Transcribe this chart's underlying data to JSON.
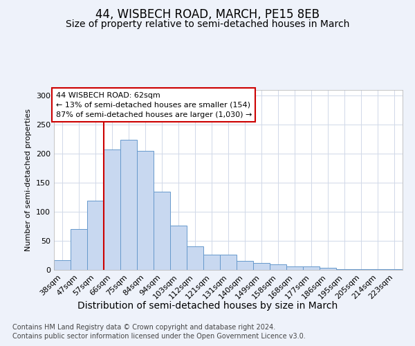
{
  "title": "44, WISBECH ROAD, MARCH, PE15 8EB",
  "subtitle": "Size of property relative to semi-detached houses in March",
  "xlabel": "Distribution of semi-detached houses by size in March",
  "ylabel": "Number of semi-detached properties",
  "footer_line1": "Contains HM Land Registry data © Crown copyright and database right 2024.",
  "footer_line2": "Contains public sector information licensed under the Open Government Licence v3.0.",
  "annotation_title": "44 WISBECH ROAD: 62sqm",
  "annotation_line2": "← 13% of semi-detached houses are smaller (154)",
  "annotation_line3": "87% of semi-detached houses are larger (1,030) →",
  "bar_color": "#c8d8f0",
  "bar_edge_color": "#6699cc",
  "red_line_color": "#cc0000",
  "categories": [
    "38sqm",
    "47sqm",
    "57sqm",
    "66sqm",
    "75sqm",
    "84sqm",
    "94sqm",
    "103sqm",
    "112sqm",
    "121sqm",
    "131sqm",
    "140sqm",
    "149sqm",
    "158sqm",
    "168sqm",
    "177sqm",
    "186sqm",
    "195sqm",
    "205sqm",
    "214sqm",
    "223sqm"
  ],
  "values": [
    17,
    70,
    119,
    208,
    224,
    205,
    135,
    76,
    40,
    26,
    26,
    15,
    12,
    10,
    6,
    6,
    4,
    1,
    1,
    1,
    1
  ],
  "ylim": [
    0,
    310
  ],
  "yticks": [
    0,
    50,
    100,
    150,
    200,
    250,
    300
  ],
  "background_color": "#eef2fa",
  "plot_background": "#ffffff",
  "grid_color": "#d0d8e8",
  "title_fontsize": 12,
  "subtitle_fontsize": 10,
  "xlabel_fontsize": 10,
  "ylabel_fontsize": 8,
  "tick_fontsize": 8,
  "annotation_fontsize": 8,
  "footer_fontsize": 7,
  "red_line_x": 2.5
}
